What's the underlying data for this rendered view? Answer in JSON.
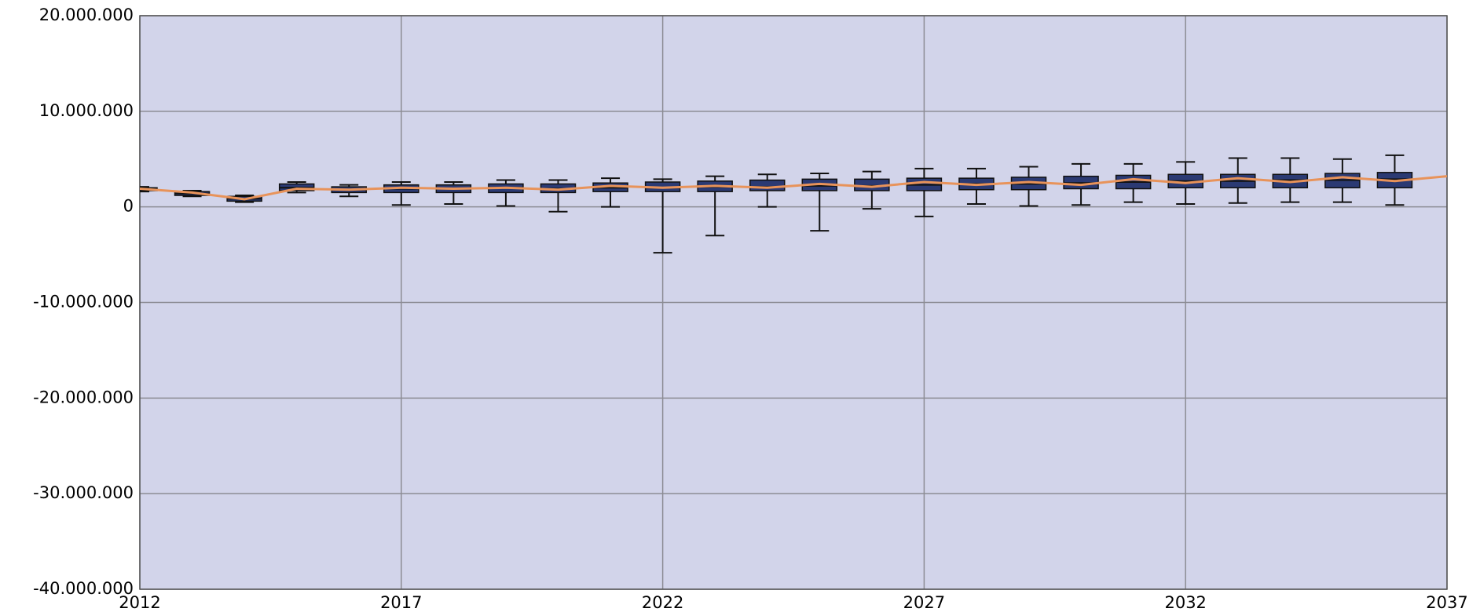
{
  "chart_data": {
    "type": "box",
    "xlim": [
      2012,
      2037
    ],
    "xticks": [
      2012,
      2017,
      2022,
      2027,
      2032,
      2037
    ],
    "ylim": [
      -40000000,
      20000000
    ],
    "yticks": [
      {
        "value": -40000000,
        "label": "-40.000.000"
      },
      {
        "value": -30000000,
        "label": "-30.000.000"
      },
      {
        "value": -20000000,
        "label": "-20.000.000"
      },
      {
        "value": -10000000,
        "label": "-10.000.000"
      },
      0,
      {
        "value": 10000000,
        "label": "10.000.000"
      },
      {
        "value": 20000000,
        "label": "20.000.000"
      }
    ],
    "grid": true,
    "background": "#d2d4ea",
    "boxes": {
      "color": "#2b3a73",
      "x": [
        2012,
        2013,
        2014,
        2015,
        2016,
        2017,
        2018,
        2019,
        2020,
        2021,
        2022,
        2023,
        2024,
        2025,
        2026,
        2027,
        2028,
        2029,
        2030,
        2031,
        2032,
        2033,
        2034,
        2035,
        2036
      ],
      "min": [
        1600000,
        1100000,
        500000,
        1500000,
        1100000,
        200000,
        300000,
        100000,
        -500000,
        0,
        -4800000,
        -3000000,
        0,
        -2500000,
        -200000,
        -1000000,
        300000,
        100000,
        200000,
        500000,
        300000,
        400000,
        500000,
        500000,
        200000
      ],
      "q1": [
        1700000,
        1200000,
        600000,
        1700000,
        1500000,
        1500000,
        1500000,
        1500000,
        1500000,
        1600000,
        1600000,
        1600000,
        1700000,
        1700000,
        1700000,
        1700000,
        1800000,
        1800000,
        1900000,
        1900000,
        2000000,
        2000000,
        2000000,
        2000000,
        2000000
      ],
      "median": [
        1850000,
        1400000,
        850000,
        2000000,
        1800000,
        1900000,
        1900000,
        2000000,
        1900000,
        2000000,
        2000000,
        2100000,
        2100000,
        2200000,
        2200000,
        2300000,
        2400000,
        2400000,
        2500000,
        2600000,
        2700000,
        2700000,
        2800000,
        2800000,
        2900000
      ],
      "q3": [
        2000000,
        1600000,
        1100000,
        2400000,
        2100000,
        2300000,
        2300000,
        2400000,
        2400000,
        2500000,
        2600000,
        2700000,
        2800000,
        2900000,
        2900000,
        3000000,
        3000000,
        3100000,
        3200000,
        3300000,
        3400000,
        3400000,
        3400000,
        3500000,
        3600000
      ],
      "max": [
        2100000,
        1700000,
        1200000,
        2600000,
        2300000,
        2600000,
        2600000,
        2800000,
        2800000,
        3000000,
        2900000,
        3200000,
        3400000,
        3500000,
        3700000,
        4000000,
        4000000,
        4200000,
        4500000,
        4500000,
        4700000,
        5100000,
        5100000,
        5000000,
        5400000
      ]
    },
    "line": {
      "color": "#e8935a",
      "x": [
        2012,
        2013,
        2014,
        2015,
        2016,
        2017,
        2018,
        2019,
        2020,
        2021,
        2022,
        2023,
        2024,
        2025,
        2026,
        2027,
        2028,
        2029,
        2030,
        2031,
        2032,
        2033,
        2034,
        2035,
        2036,
        2037
      ],
      "values": [
        1900000,
        1500000,
        800000,
        1900000,
        1800000,
        2000000,
        1900000,
        2000000,
        1800000,
        2200000,
        2000000,
        2200000,
        2000000,
        2400000,
        2100000,
        2600000,
        2300000,
        2600000,
        2300000,
        2900000,
        2500000,
        3000000,
        2600000,
        3100000,
        2700000,
        3200000
      ]
    }
  }
}
